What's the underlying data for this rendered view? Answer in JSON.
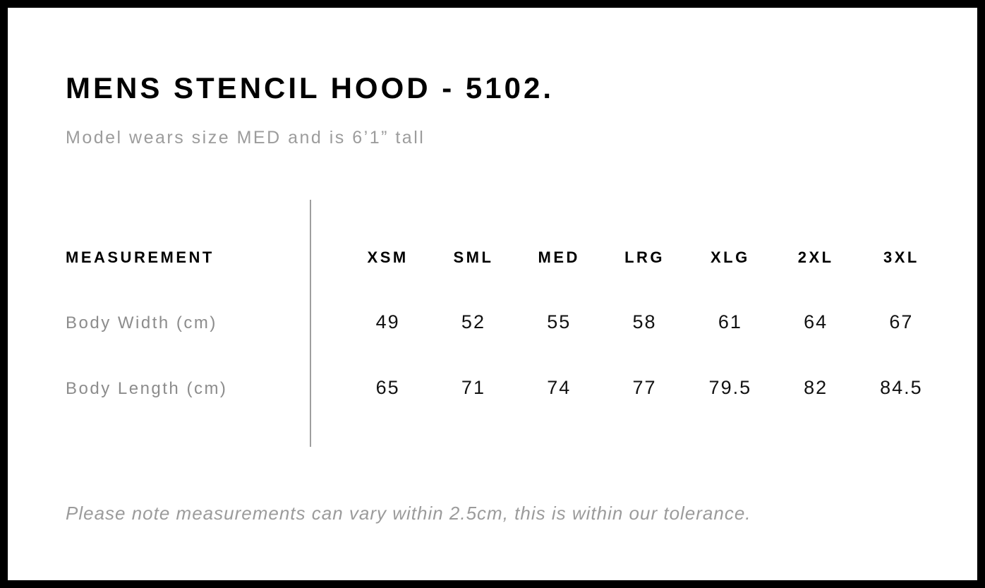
{
  "page": {
    "title": "MENS STENCIL HOOD - 5102.",
    "subtitle": "Model wears size MED and is 6’1” tall",
    "note": "Please note measurements can vary within 2.5cm, this is within our tolerance."
  },
  "size_chart": {
    "label_header": "MEASUREMENT",
    "size_headers": [
      "XSM",
      "SML",
      "MED",
      "LRG",
      "XLG",
      "2XL",
      "3XL"
    ],
    "rows": [
      {
        "label": "Body Width (cm)",
        "values": [
          "49",
          "52",
          "55",
          "58",
          "61",
          "64",
          "67"
        ]
      },
      {
        "label": "Body Length (cm)",
        "values": [
          "65",
          "71",
          "74",
          "77",
          "79.5",
          "82",
          "84.5"
        ]
      }
    ]
  },
  "chart_data": {
    "type": "table",
    "title": "MENS STENCIL HOOD - 5102.",
    "columns": [
      "MEASUREMENT",
      "XSM",
      "SML",
      "MED",
      "LRG",
      "XLG",
      "2XL",
      "3XL"
    ],
    "rows": [
      [
        "Body Width (cm)",
        49,
        52,
        55,
        58,
        61,
        64,
        67
      ],
      [
        "Body Length (cm)",
        65,
        71,
        74,
        77,
        79.5,
        82,
        84.5
      ]
    ],
    "footnote": "Please note measurements can vary within 2.5cm, this is within our tolerance."
  },
  "colors": {
    "frame": "#000000",
    "text_primary": "#111111",
    "text_muted": "#9b9b9b",
    "divider": "#9e9e9e"
  }
}
